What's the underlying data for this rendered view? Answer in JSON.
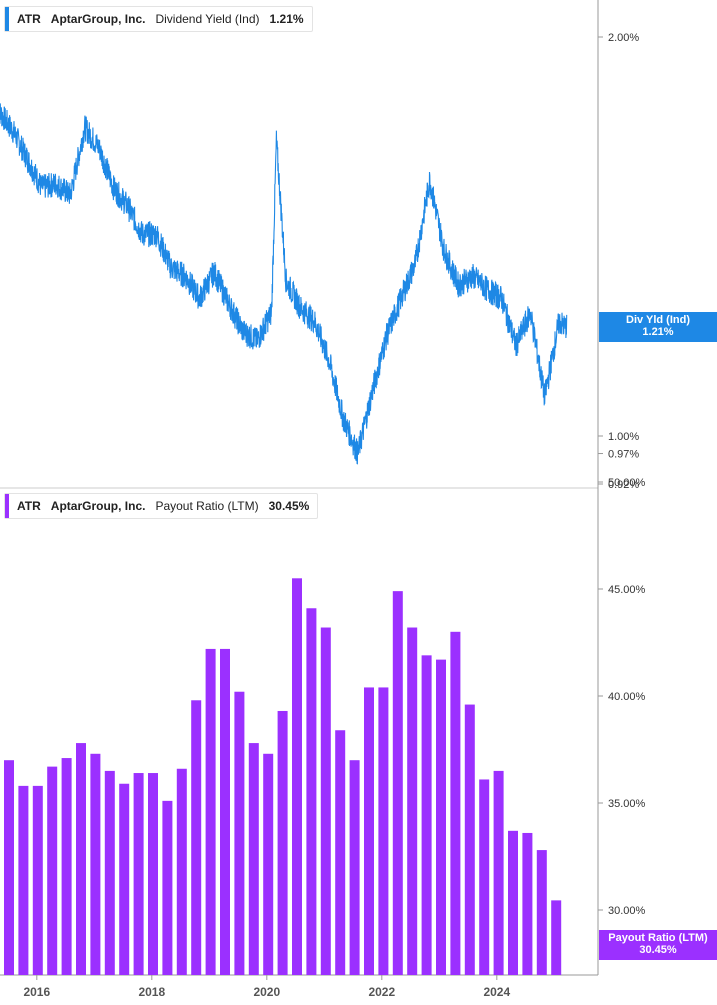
{
  "top_panel": {
    "legend": {
      "ticker": "ATR",
      "company": "AptarGroup, Inc.",
      "metric": "Dividend Yield (Ind)",
      "value": "1.21%"
    },
    "tag": {
      "label": "Div Yld (Ind)",
      "value": "1.21%"
    },
    "y_ticks": [
      "2.00%",
      "1.00%",
      "0.97%",
      "0.92%"
    ],
    "color": "#1e88e5"
  },
  "bottom_panel": {
    "legend": {
      "ticker": "ATR",
      "company": "AptarGroup, Inc.",
      "metric": "Payout Ratio (LTM)",
      "value": "30.45%"
    },
    "tag": {
      "label": "Payout Ratio (LTM)",
      "value": "30.45%"
    },
    "y_ticks": [
      "50.00%",
      "45.00%",
      "40.00%",
      "35.00%",
      "30.00%"
    ],
    "color": "#9b30ff"
  },
  "x_ticks": [
    "2016",
    "2018",
    "2020",
    "2022",
    "2024"
  ],
  "chart_data": [
    {
      "type": "line",
      "title": "ATR AptarGroup, Inc. Dividend Yield (Ind)",
      "ylabel": "Dividend Yield (Ind)",
      "y_scale": "log",
      "ylim": [
        0.92,
        2.1
      ],
      "x": [
        "2015-05",
        "2015-08",
        "2015-11",
        "2016-02",
        "2016-05",
        "2016-08",
        "2016-11",
        "2017-02",
        "2017-05",
        "2017-08",
        "2017-11",
        "2018-02",
        "2018-05",
        "2018-08",
        "2018-11",
        "2019-02",
        "2019-05",
        "2019-08",
        "2019-11",
        "2020-02",
        "2020-03",
        "2020-05",
        "2020-08",
        "2020-11",
        "2021-02",
        "2021-05",
        "2021-08",
        "2021-11",
        "2022-02",
        "2022-05",
        "2022-08",
        "2022-11",
        "2023-02",
        "2023-05",
        "2023-08",
        "2023-11",
        "2024-02",
        "2024-05",
        "2024-08",
        "2024-11",
        "2025-02",
        "2025-03"
      ],
      "series": [
        {
          "name": "Dividend Yield (Ind)",
          "values": [
            1.76,
            1.7,
            1.62,
            1.54,
            1.55,
            1.52,
            1.71,
            1.65,
            1.54,
            1.49,
            1.42,
            1.42,
            1.34,
            1.32,
            1.27,
            1.33,
            1.26,
            1.2,
            1.18,
            1.24,
            1.67,
            1.31,
            1.25,
            1.22,
            1.14,
            1.03,
            0.97,
            1.08,
            1.19,
            1.27,
            1.35,
            1.56,
            1.38,
            1.3,
            1.32,
            1.29,
            1.27,
            1.17,
            1.24,
            1.07,
            1.22,
            1.21
          ]
        }
      ]
    },
    {
      "type": "bar",
      "title": "ATR AptarGroup, Inc. Payout Ratio (LTM)",
      "ylabel": "Payout Ratio (LTM)",
      "ylim": [
        30,
        50
      ],
      "categories": [
        "Q3 2015",
        "Q4 2015",
        "Q1 2016",
        "Q2 2016",
        "Q3 2016",
        "Q4 2016",
        "Q1 2017",
        "Q2 2017",
        "Q3 2017",
        "Q4 2017",
        "Q1 2018",
        "Q2 2018",
        "Q3 2018",
        "Q4 2018",
        "Q1 2019",
        "Q2 2019",
        "Q3 2019",
        "Q4 2019",
        "Q1 2020",
        "Q2 2020",
        "Q3 2020",
        "Q4 2020",
        "Q1 2021",
        "Q2 2021",
        "Q3 2021",
        "Q4 2021",
        "Q1 2022",
        "Q2 2022",
        "Q3 2022",
        "Q4 2022",
        "Q1 2023",
        "Q2 2023",
        "Q3 2023",
        "Q4 2023",
        "Q1 2024",
        "Q2 2024",
        "Q3 2024",
        "Q4 2024",
        "Q1 2025"
      ],
      "series": [
        {
          "name": "Payout Ratio (LTM)",
          "values": [
            37.0,
            35.8,
            35.8,
            36.7,
            37.1,
            37.8,
            37.3,
            36.5,
            35.9,
            36.4,
            36.4,
            35.1,
            36.6,
            39.8,
            42.2,
            42.2,
            40.2,
            37.8,
            37.3,
            39.3,
            45.5,
            44.1,
            43.2,
            38.4,
            37.0,
            40.4,
            40.4,
            44.9,
            43.2,
            41.9,
            41.7,
            43.0,
            39.6,
            36.1,
            36.5,
            33.7,
            33.6,
            32.8,
            30.45
          ]
        }
      ]
    }
  ]
}
